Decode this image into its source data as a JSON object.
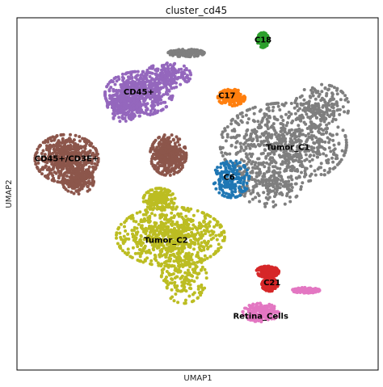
{
  "chart_data": {
    "type": "scatter",
    "title": "cluster_cd45",
    "xlabel": "UMAP1",
    "ylabel": "UMAP2",
    "ticks": "none",
    "grid": false,
    "legend": "on-data",
    "clusters": [
      {
        "name": "CD45+",
        "color": "#9467bd",
        "label_at": [
          -2.6,
          7.0
        ],
        "blobs": [
          [
            -2.6,
            6.9,
            1.5,
            1.2,
            3
          ],
          [
            -1.3,
            7.9,
            1.0,
            0.7,
            1
          ],
          [
            -3.3,
            6.2,
            0.7,
            0.8,
            1
          ]
        ]
      },
      {
        "name": "CD45+/CD3E+",
        "color": "#8c564b",
        "label_at": [
          -5.8,
          3.4
        ],
        "blobs": [
          [
            -5.8,
            3.4,
            1.4,
            1.3,
            3
          ],
          [
            -5.3,
            2.2,
            0.7,
            0.7,
            1
          ],
          [
            -1.3,
            3.6,
            0.8,
            1.1,
            2
          ]
        ]
      },
      {
        "name": "C17",
        "color": "#ff7f0e",
        "label_at": [
          1.3,
          6.8
        ],
        "blobs": [
          [
            1.5,
            6.7,
            0.6,
            0.45,
            1
          ]
        ]
      },
      {
        "name": "C18",
        "color": "#2ca02c",
        "label_at": [
          2.9,
          9.8
        ],
        "blobs": [
          [
            2.9,
            9.8,
            0.25,
            0.4,
            1
          ]
        ]
      },
      {
        "name": "Tumor_C1",
        "color": "#7f7f7f",
        "label_at": [
          4.0,
          4.0
        ],
        "blobs": [
          [
            3.8,
            4.2,
            2.8,
            2.2,
            4
          ],
          [
            5.5,
            6.2,
            1.2,
            1.2,
            1
          ],
          [
            3.2,
            2.0,
            1.4,
            1.2,
            1
          ],
          [
            -0.5,
            9.1,
            0.8,
            0.2,
            1
          ]
        ]
      },
      {
        "name": "C6",
        "color": "#1f77b4",
        "label_at": [
          1.4,
          2.4
        ],
        "blobs": [
          [
            1.5,
            2.3,
            0.8,
            1.0,
            1
          ]
        ]
      },
      {
        "name": "Tumor_C2",
        "color": "#bcbd22",
        "label_at": [
          -1.4,
          -1.0
        ],
        "blobs": [
          [
            -1.2,
            -0.8,
            2.4,
            1.6,
            4
          ],
          [
            -0.6,
            -3.0,
            1.0,
            1.4,
            1
          ],
          [
            -1.7,
            1.2,
            0.7,
            0.6,
            1
          ]
        ]
      },
      {
        "name": "C21",
        "color": "#d62728",
        "label_at": [
          3.3,
          -3.3
        ],
        "blobs": [
          [
            3.1,
            -2.7,
            0.5,
            0.3,
            1
          ],
          [
            3.2,
            -3.4,
            0.35,
            0.35,
            1
          ]
        ]
      },
      {
        "name": "Retina_Cells",
        "color": "#e377c2",
        "label_at": [
          2.8,
          -5.1
        ],
        "blobs": [
          [
            2.8,
            -4.9,
            0.8,
            0.5,
            1
          ],
          [
            4.8,
            -3.7,
            0.6,
            0.15,
            1
          ]
        ]
      }
    ],
    "xlim": [
      -8,
      8
    ],
    "ylim": [
      -8,
      11
    ]
  }
}
